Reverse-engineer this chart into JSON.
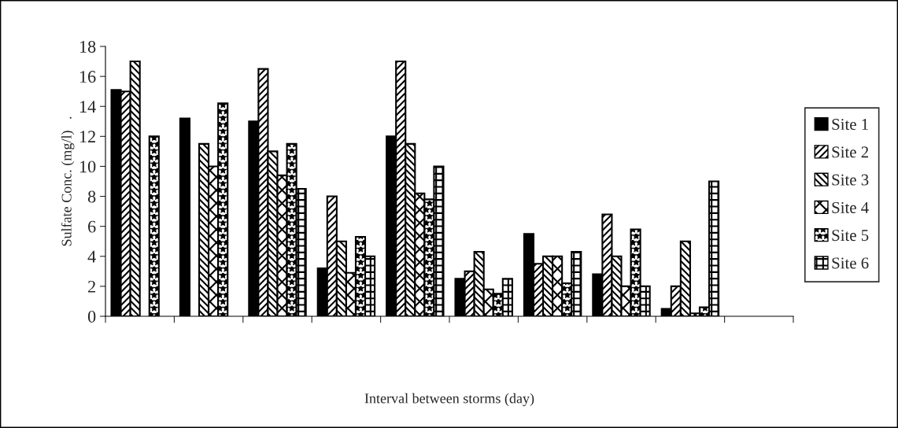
{
  "chart_data": {
    "type": "bar",
    "annotations": [
      "Interval between storms (day)"
    ],
    "ylabel": "Sulfate Conc. (mg/l)   .",
    "categories": [
      null,
      null,
      null,
      null,
      null,
      null,
      null,
      null,
      null,
      null
    ],
    "series": [
      {
        "name": "Site 1",
        "color": "#000000",
        "values": [
          15.1,
          13.2,
          13,
          3.2,
          12,
          2.5,
          5.5,
          2.8,
          0.5,
          null
        ]
      },
      {
        "name": "Site 2",
        "color": "#000000",
        "values": [
          15,
          null,
          16.5,
          8,
          17,
          3,
          3.5,
          6.8,
          2,
          null
        ]
      },
      {
        "name": "Site 3",
        "color": "#000000",
        "values": [
          17,
          11.5,
          11,
          5,
          11.5,
          4.3,
          4,
          4,
          5,
          null
        ]
      },
      {
        "name": "Site 4",
        "color": "#000000",
        "values": [
          null,
          10,
          9.4,
          2.9,
          8.2,
          1.8,
          4,
          2,
          0.2,
          null
        ]
      },
      {
        "name": "Site 5",
        "color": "#000000",
        "values": [
          12,
          14.2,
          11.5,
          5.3,
          7.8,
          1.5,
          2.2,
          5.8,
          0.6,
          null
        ]
      },
      {
        "name": "Site 6",
        "color": "#000000",
        "values": [
          null,
          null,
          8.5,
          4,
          10,
          2.5,
          4.3,
          2,
          9,
          null
        ]
      }
    ],
    "ylim": [
      0,
      18
    ],
    "yticks": [
      0,
      2,
      4,
      6,
      8,
      10,
      12,
      14,
      16,
      18
    ],
    "grid": false,
    "legend": "right"
  }
}
